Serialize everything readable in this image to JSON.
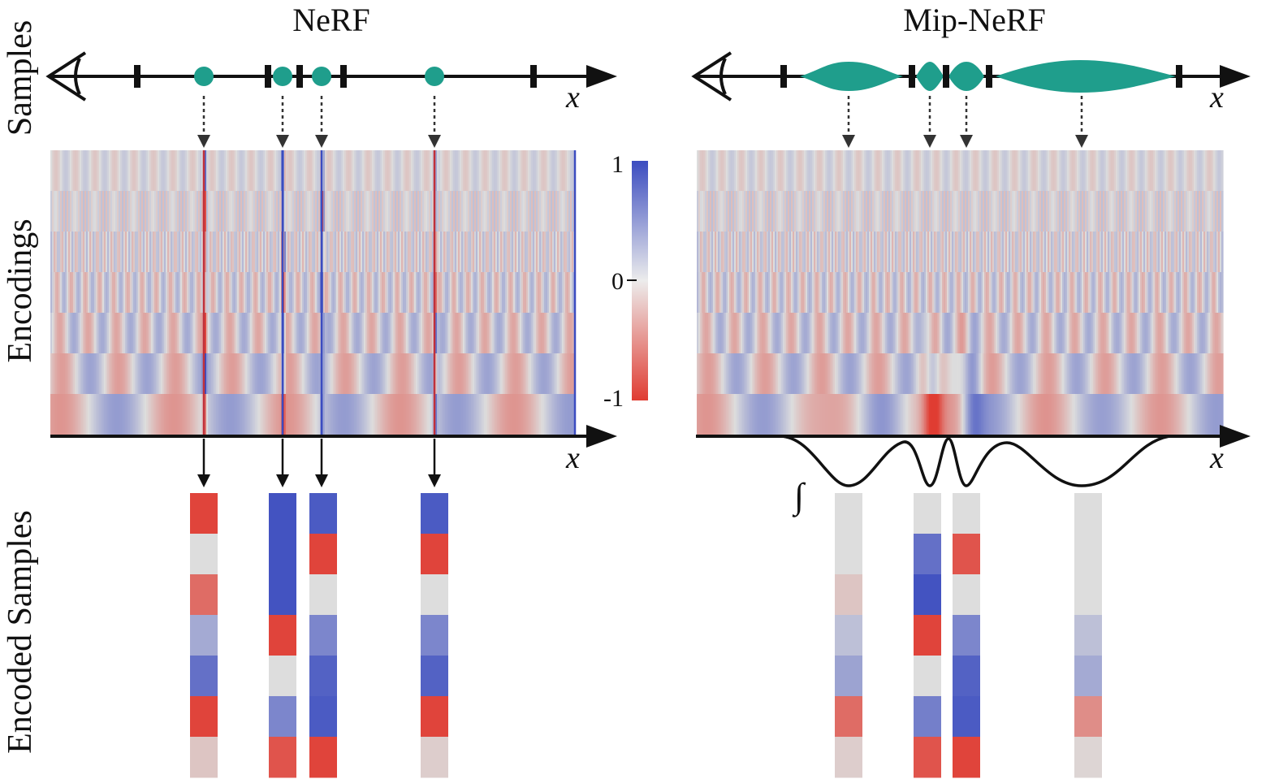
{
  "titles": {
    "left": "NeRF",
    "right": "Mip-NeRF"
  },
  "row_labels": {
    "samples": "Samples",
    "encodings": "Encodings",
    "encoded": "Encoded Samples"
  },
  "axis_label": "x",
  "integral_symbol": "∫",
  "colorbar": {
    "max_label": "1",
    "mid_label": "0",
    "min_label": "-1",
    "colors": {
      "positive": "#3b4cc0",
      "neutral": "#dddddd",
      "negative": "#e03c32"
    }
  },
  "sample_color": "#1f9e8c",
  "nerf": {
    "encoded_columns": [
      [
        -0.95,
        0.0,
        -0.7,
        0.35,
        0.75,
        -0.95,
        -0.15
      ],
      [
        0.95,
        0.95,
        0.95,
        -0.95,
        0.0,
        0.6,
        -0.85
      ],
      [
        0.9,
        -0.95,
        0.0,
        0.6,
        0.85,
        0.9,
        -0.95
      ],
      [
        0.9,
        -0.95,
        0.0,
        0.6,
        0.85,
        -0.95,
        -0.1
      ]
    ]
  },
  "mipnerf": {
    "encoded_columns": [
      [
        0.0,
        0.0,
        -0.15,
        0.2,
        0.4,
        -0.7,
        -0.1
      ],
      [
        0.0,
        0.75,
        0.95,
        -0.95,
        0.0,
        0.65,
        -0.85
      ],
      [
        0.0,
        -0.85,
        0.0,
        0.6,
        0.85,
        0.9,
        -0.95
      ],
      [
        0.0,
        0.0,
        0.0,
        0.2,
        0.35,
        -0.5,
        -0.05
      ]
    ]
  }
}
